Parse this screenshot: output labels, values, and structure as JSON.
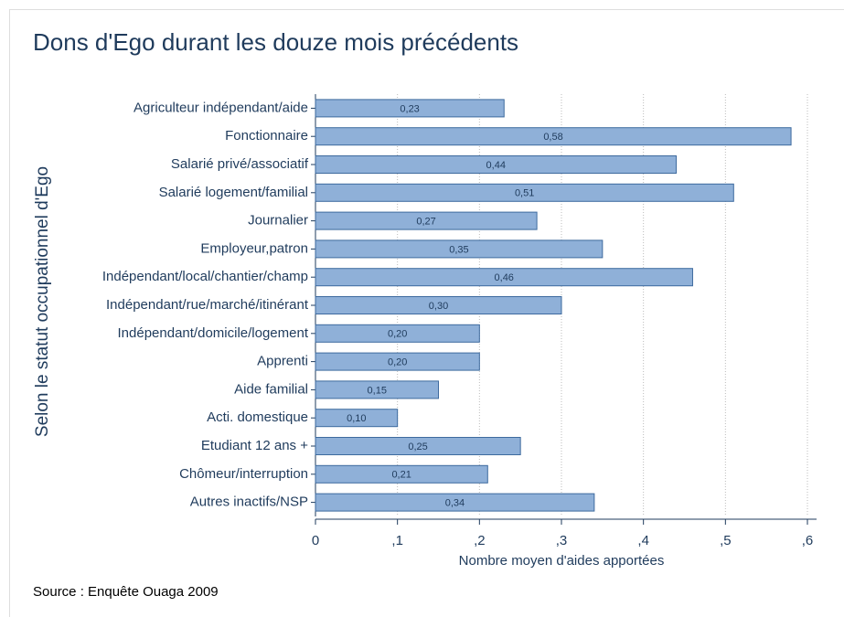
{
  "chart_data": {
    "type": "barh",
    "title": "Dons d'Ego durant les douze mois précédents",
    "xlabel": "Nombre moyen d'aides apportées",
    "ylabel": "Selon le statut occupationnel d'Ego",
    "source": "Source : Enquête Ouaga 2009",
    "categories": [
      "Agriculteur indépendant/aide",
      "Fonctionnaire",
      "Salarié privé/associatif",
      "Salarié logement/familial",
      "Journalier",
      "Employeur,patron",
      "Indépendant/local/chantier/champ",
      "Indépendant/rue/marché/itinérant",
      "Indépendant/domicile/logement",
      "Apprenti",
      "Aide familial",
      "Acti. domestique",
      "Etudiant 12 ans +",
      "Chômeur/interruption",
      "Autres inactifs/NSP"
    ],
    "values": [
      0.23,
      0.58,
      0.44,
      0.51,
      0.27,
      0.35,
      0.46,
      0.3,
      0.2,
      0.2,
      0.15,
      0.1,
      0.25,
      0.21,
      0.34
    ],
    "value_labels": [
      "0,23",
      "0,58",
      "0,44",
      "0,51",
      "0,27",
      "0,35",
      "0,46",
      "0,30",
      "0,20",
      "0,20",
      "0,15",
      "0,10",
      "0,25",
      "0,21",
      "0,34"
    ],
    "color": "#8fb0d8",
    "xlim": [
      0,
      0.6
    ],
    "xticks": [
      0,
      {
        "value": 0.1,
        "label": ",1"
      },
      {
        "value": 0.2,
        "label": ",2"
      },
      {
        "value": 0.3,
        "label": ",3"
      },
      {
        "value": 0.4,
        "label": ",4"
      },
      {
        "value": 0.5,
        "label": ",5"
      },
      {
        "value": 0.6,
        "label": ",6"
      }
    ],
    "grid": true
  }
}
